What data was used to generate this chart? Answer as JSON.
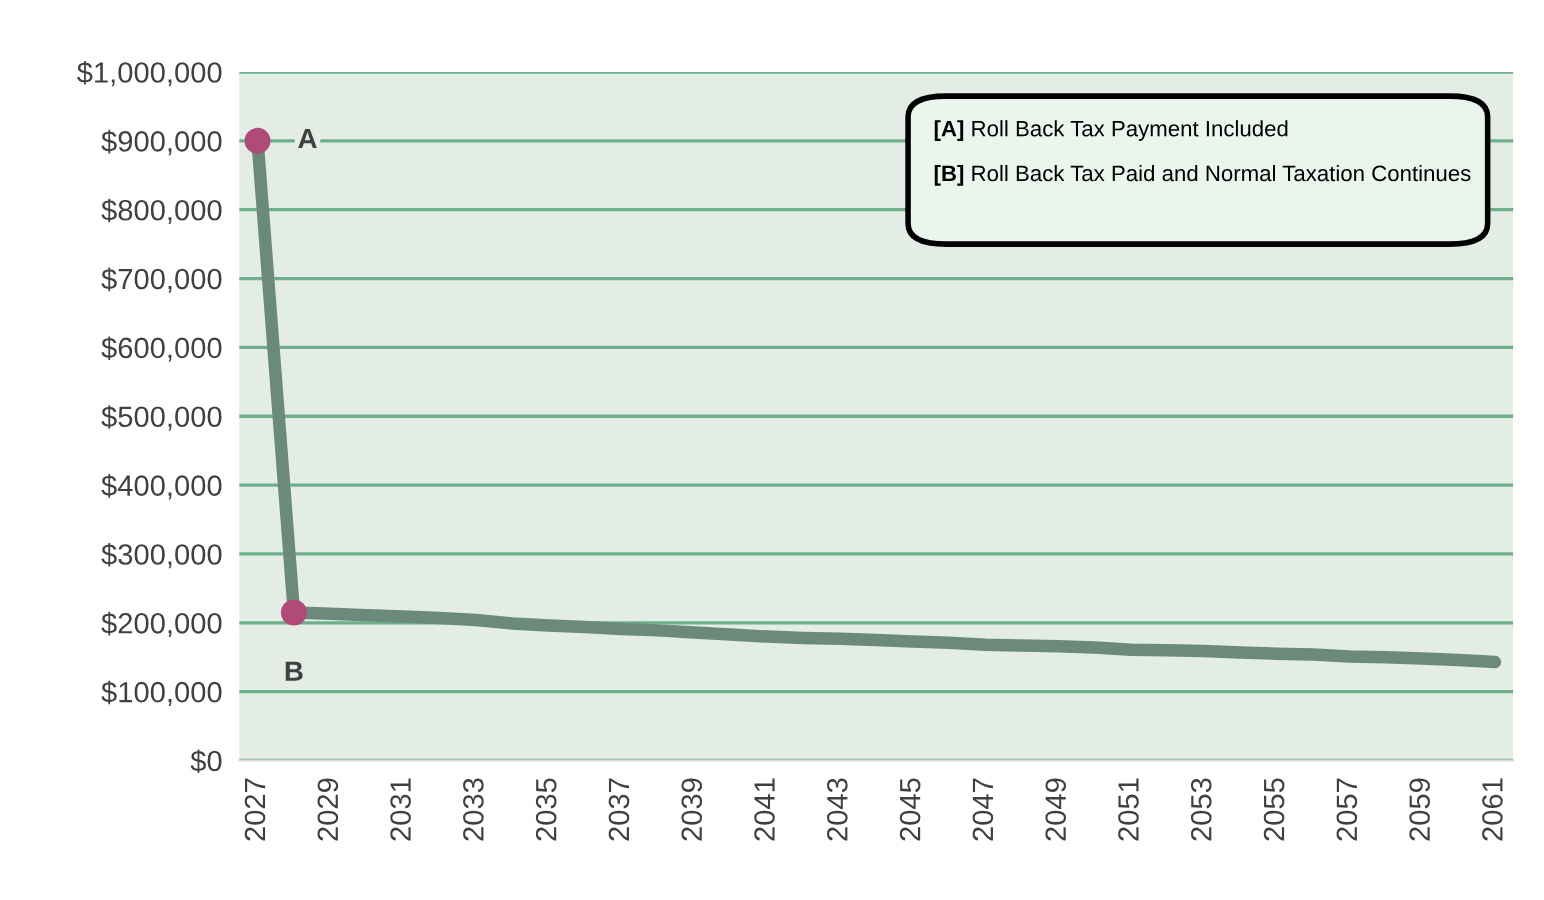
{
  "chart_data": {
    "type": "line",
    "x": [
      2027,
      2028,
      2029,
      2030,
      2031,
      2032,
      2033,
      2034,
      2035,
      2036,
      2037,
      2038,
      2039,
      2040,
      2041,
      2042,
      2043,
      2044,
      2045,
      2046,
      2047,
      2048,
      2049,
      2050,
      2051,
      2052,
      2053,
      2054,
      2055,
      2056,
      2057,
      2058,
      2059,
      2060,
      2061
    ],
    "series": [
      {
        "color": "#6b8a7c",
        "values": [
          900000,
          215000,
          213000,
          211000,
          209000,
          207000,
          204000,
          199000,
          196000,
          194000,
          191000,
          189000,
          186000,
          183000,
          180000,
          178000,
          177000,
          175000,
          173000,
          171000,
          168000,
          167000,
          166000,
          164000,
          161000,
          160000,
          159000,
          157000,
          155000,
          154000,
          151000,
          150000,
          148000,
          146000,
          143000
        ]
      },
      {
        "type": "scatter",
        "color": "#b04a78",
        "x": [
          2027,
          2028
        ],
        "values": [
          900000,
          215000
        ],
        "marker": "circle"
      }
    ],
    "xlim": [
      2026.5,
      2061.5
    ],
    "xticks": [
      2027,
      2029,
      2031,
      2033,
      2035,
      2037,
      2039,
      2041,
      2043,
      2045,
      2047,
      2049,
      2051,
      2053,
      2055,
      2057,
      2059,
      2061
    ],
    "ylim": [
      0,
      1000000
    ],
    "yticks": [
      {
        "value": 0,
        "label": "$0"
      },
      {
        "value": 100000,
        "label": "$100,000"
      },
      {
        "value": 200000,
        "label": "$200,000"
      },
      {
        "value": 300000,
        "label": "$300,000"
      },
      {
        "value": 400000,
        "label": "$400,000"
      },
      {
        "value": 500000,
        "label": "$500,000"
      },
      {
        "value": 600000,
        "label": "$600,000"
      },
      {
        "value": 700000,
        "label": "$700,000"
      },
      {
        "value": 800000,
        "label": "$800,000"
      },
      {
        "value": 900000,
        "label": "$900,000"
      },
      {
        "value": 1000000,
        "label": "$1,000,000"
      }
    ],
    "grid": "y",
    "legend": false,
    "annotations": [
      {
        "text": "A",
        "x": 2027,
        "y": 900000
      },
      {
        "text": "B",
        "x": 2028,
        "y": 215000
      },
      "[A] Roll Back Tax Payment Included",
      "[B] Roll Back Tax Paid and Normal Taxation Continues"
    ]
  }
}
